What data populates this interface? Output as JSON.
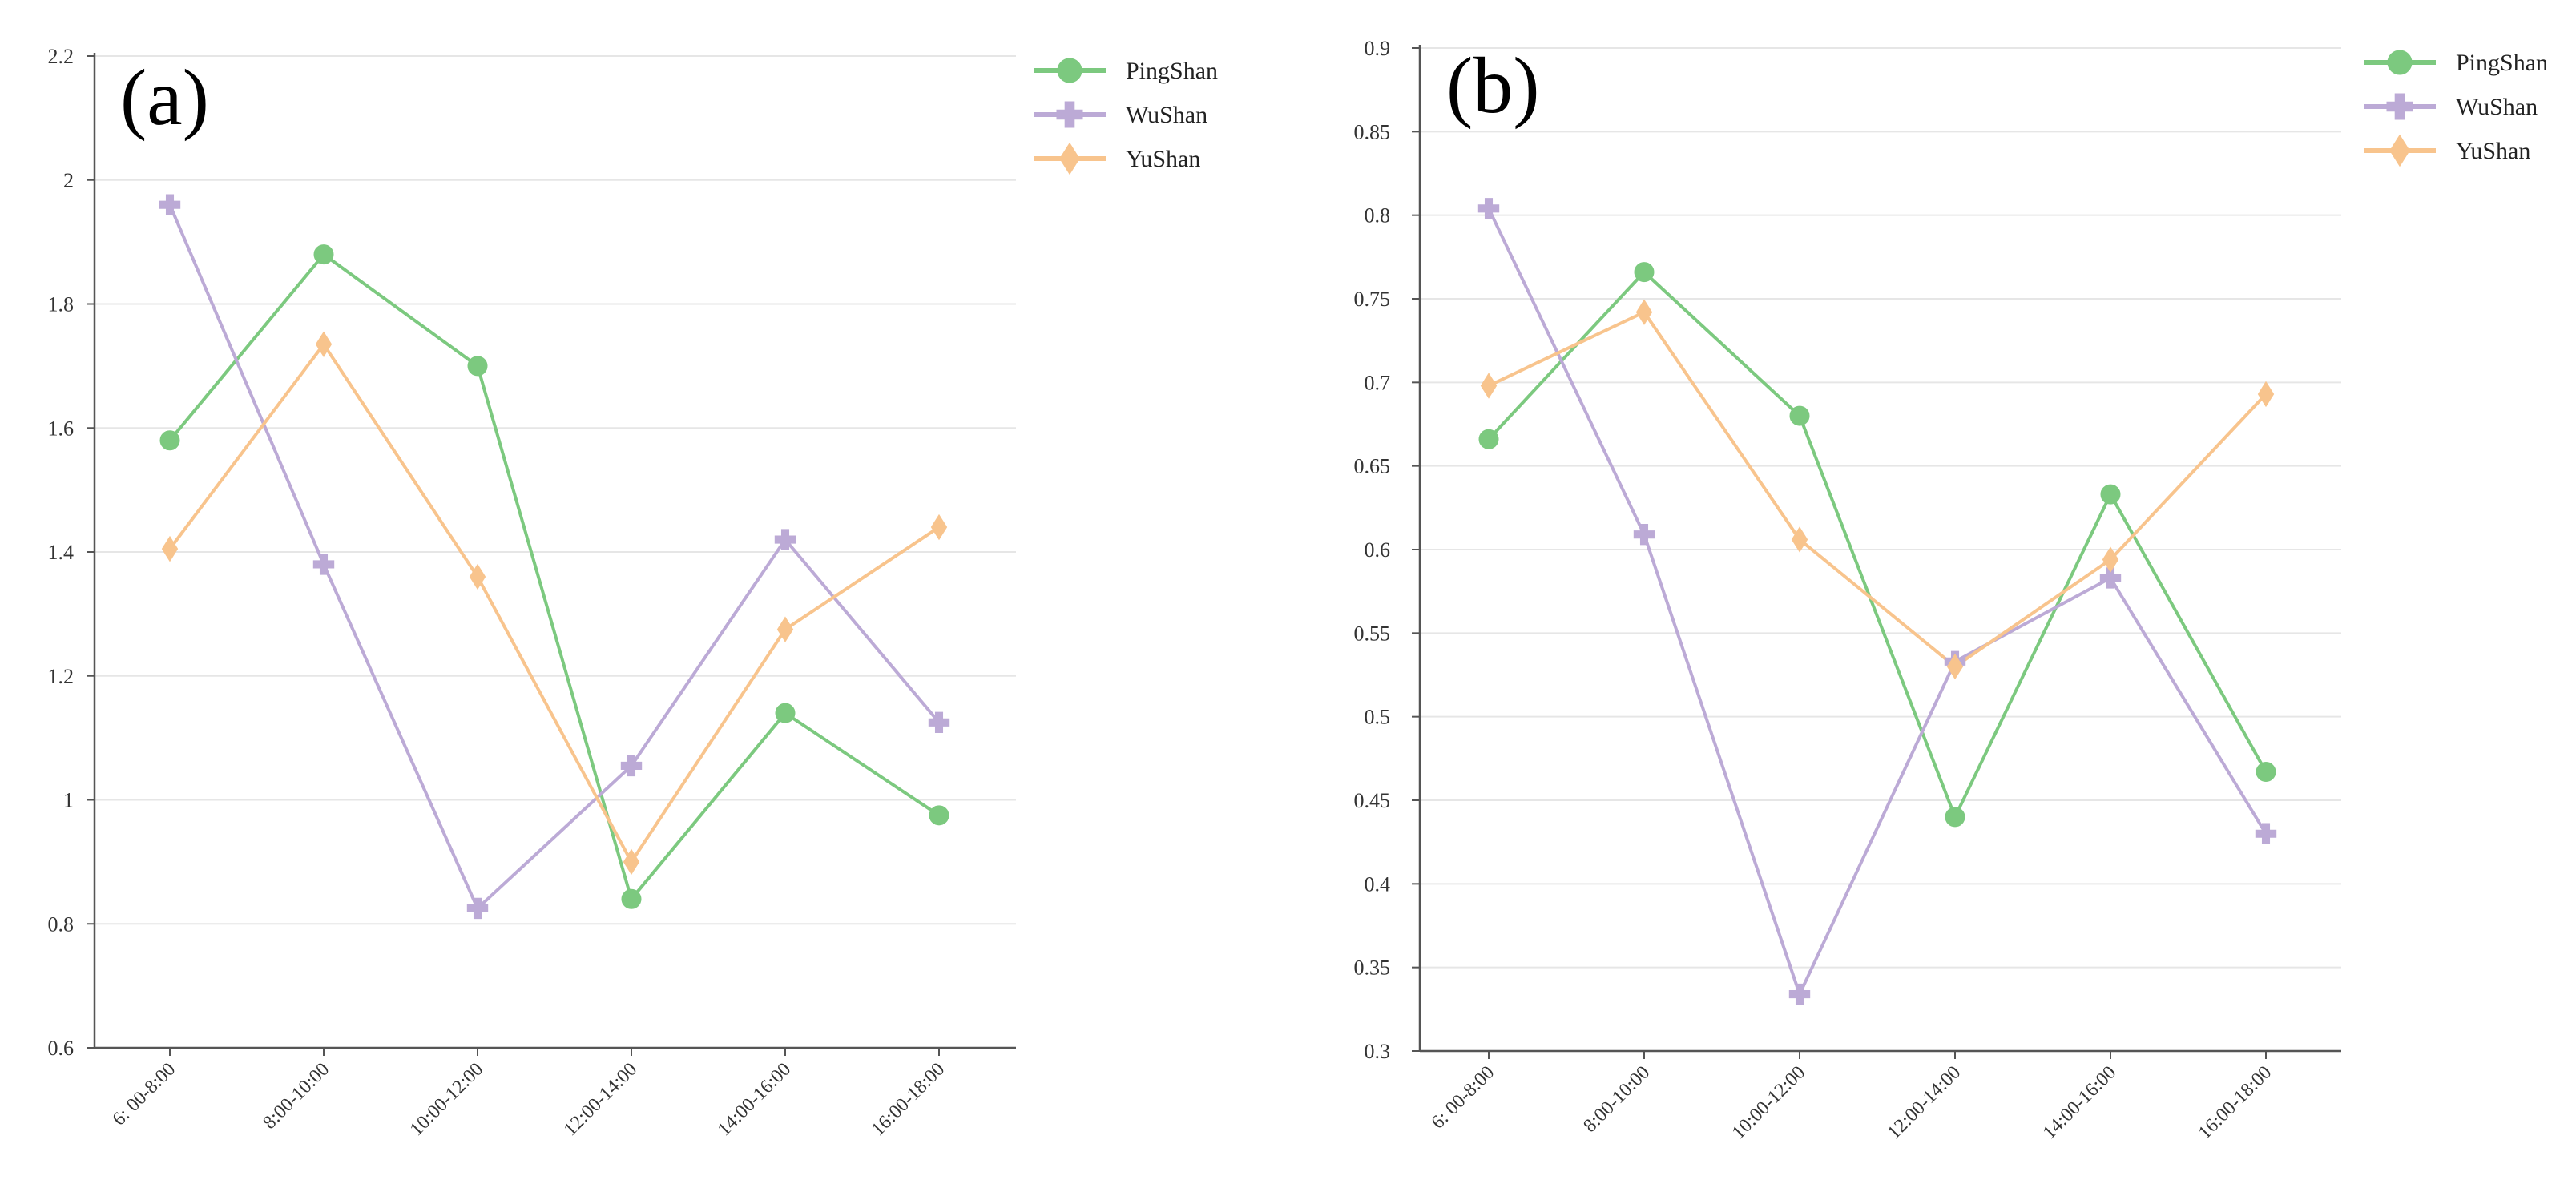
{
  "chart_data": [
    {
      "type": "line",
      "panel_label": "(a)",
      "categories": [
        "6:  00-8:00",
        "8:00-10:00",
        "10:00-12:00",
        "12:00-14:00",
        "14:00-16:00",
        "16:00-18:00"
      ],
      "ylim": [
        0.6,
        2.2
      ],
      "yticks": [
        0.6,
        0.8,
        1,
        1.2,
        1.4,
        1.6,
        1.8,
        2,
        2.2
      ],
      "ytick_labels": [
        "0.6",
        "0.8",
        "1",
        "1.2",
        "1.4",
        "1.6",
        "1.8",
        "2",
        "2.2"
      ],
      "grid": true,
      "legend_position": "top-right",
      "series": [
        {
          "name": "PingShan",
          "color": "#7cc97f",
          "marker": "circle",
          "values": [
            1.58,
            1.88,
            1.7,
            0.84,
            1.14,
            0.975
          ]
        },
        {
          "name": "WuShan",
          "color": "#bcaad6",
          "marker": "plus",
          "values": [
            1.96,
            1.38,
            0.825,
            1.055,
            1.42,
            1.125
          ]
        },
        {
          "name": "YuShan",
          "color": "#f8c48d",
          "marker": "diamond",
          "values": [
            1.405,
            1.735,
            1.36,
            0.9,
            1.275,
            1.44
          ]
        }
      ]
    },
    {
      "type": "line",
      "panel_label": "(b)",
      "categories": [
        "6:  00-8:00",
        "8:00-10:00",
        "10:00-12:00",
        "12:00-14:00",
        "14:00-16:00",
        "16:00-18:00"
      ],
      "ylim": [
        0.3,
        0.9
      ],
      "yticks": [
        0.3,
        0.35,
        0.4,
        0.45,
        0.5,
        0.55,
        0.6,
        0.65,
        0.7,
        0.75,
        0.8,
        0.85,
        0.9
      ],
      "ytick_labels": [
        "0.3",
        "0.35",
        "0.4",
        "0.45",
        "0.5",
        "0.55",
        "0.6",
        "0.65",
        "0.7",
        "0.75",
        "0.8",
        "0.85",
        "0.9"
      ],
      "grid": true,
      "legend_position": "top-right",
      "series": [
        {
          "name": "PingShan",
          "color": "#7cc97f",
          "marker": "circle",
          "values": [
            0.666,
            0.766,
            0.68,
            0.44,
            0.633,
            0.467
          ]
        },
        {
          "name": "WuShan",
          "color": "#bcaad6",
          "marker": "plus",
          "values": [
            0.804,
            0.609,
            0.334,
            0.533,
            0.583,
            0.43
          ]
        },
        {
          "name": "YuShan",
          "color": "#f8c48d",
          "marker": "diamond",
          "values": [
            0.698,
            0.742,
            0.606,
            0.53,
            0.594,
            0.693
          ]
        }
      ]
    }
  ]
}
